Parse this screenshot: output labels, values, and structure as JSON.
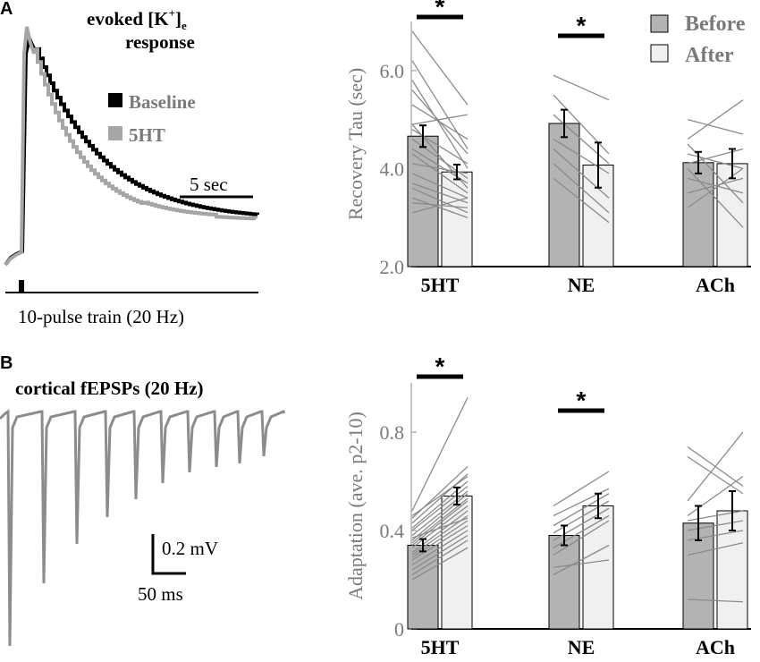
{
  "panels": {
    "a_label": "A",
    "b_label": "B"
  },
  "trace_a": {
    "title_line1": "evoked [K",
    "title_sup": "+",
    "title_close": "]",
    "title_sub": "e",
    "title_line2": "response",
    "legend": [
      {
        "label": "Baseline",
        "color": "#000000"
      },
      {
        "label": "5HT",
        "color": "#a6a6a6"
      }
    ],
    "scale_label": "5 sec",
    "stim_label": "10-pulse train (20 Hz)"
  },
  "trace_b": {
    "title": "cortical fEPSPs (20 Hz)",
    "scale_y_label": "0.2 mV",
    "scale_x_label": "50 ms",
    "color": "#8c8c8c"
  },
  "legend": [
    {
      "label": "Before",
      "color": "#b3b3b3"
    },
    {
      "label": "After",
      "color": "#f0f0f0"
    }
  ],
  "chart_data": [
    {
      "type": "bar",
      "title": "",
      "ylabel": "Recovery Tau (sec)",
      "xlabel": "",
      "ylim": [
        2.0,
        7.0
      ],
      "yticks": [
        "2.0",
        "4.0",
        "6.0"
      ],
      "ytick_values": [
        2,
        4,
        6
      ],
      "categories": [
        "5HT",
        "NE",
        "ACh"
      ],
      "series": [
        {
          "name": "Before",
          "color": "#b3b3b3",
          "values": [
            4.66,
            4.92,
            4.12
          ],
          "errors": [
            0.22,
            0.28,
            0.22
          ]
        },
        {
          "name": "After",
          "color": "#f0f0f0",
          "values": [
            3.93,
            4.07,
            4.1
          ],
          "errors": [
            0.15,
            0.46,
            0.3
          ]
        }
      ],
      "significance": [
        {
          "category": "5HT",
          "label": "*"
        },
        {
          "category": "NE",
          "label": "*"
        }
      ],
      "paired_lines": [
        [
          [
            6.8,
            5.3
          ],
          [
            6.2,
            4.4
          ],
          [
            5.8,
            4.0
          ],
          [
            5.6,
            4.3
          ],
          [
            5.3,
            4.6
          ],
          [
            4.9,
            5.1
          ],
          [
            4.8,
            4.1
          ],
          [
            4.6,
            3.8
          ],
          [
            4.4,
            3.7
          ],
          [
            4.3,
            3.5
          ],
          [
            4.1,
            3.9
          ],
          [
            3.9,
            3.4
          ],
          [
            3.7,
            3.3
          ],
          [
            3.6,
            3.1
          ],
          [
            3.4,
            3.0
          ],
          [
            3.3,
            3.2
          ],
          [
            3.1,
            3.4
          ],
          [
            4.9,
            3.6
          ]
        ],
        [
          [
            5.9,
            5.4
          ],
          [
            5.5,
            4.3
          ],
          [
            5.1,
            4.1
          ],
          [
            4.6,
            3.9
          ],
          [
            4.4,
            3.4
          ],
          [
            4.1,
            3.1
          ],
          [
            3.8,
            2.9
          ]
        ],
        [
          [
            5.0,
            4.7
          ],
          [
            4.6,
            5.4
          ],
          [
            4.3,
            4.0
          ],
          [
            4.1,
            4.4
          ],
          [
            3.8,
            3.5
          ],
          [
            3.5,
            3.8
          ],
          [
            3.2,
            4.0
          ],
          [
            4.0,
            2.8
          ],
          [
            4.5,
            3.3
          ]
        ]
      ]
    },
    {
      "type": "bar",
      "title": "",
      "ylabel": "Adaptation (ave. p2-10)",
      "xlabel": "",
      "ylim": [
        0,
        1.0
      ],
      "yticks": [
        "0",
        "0.4",
        "0.8"
      ],
      "ytick_values": [
        0,
        0.4,
        0.8
      ],
      "categories": [
        "5HT",
        "NE",
        "ACh"
      ],
      "series": [
        {
          "name": "Before",
          "color": "#b3b3b3",
          "values": [
            0.34,
            0.38,
            0.43
          ],
          "errors": [
            0.025,
            0.04,
            0.07
          ]
        },
        {
          "name": "After",
          "color": "#f0f0f0",
          "values": [
            0.54,
            0.5,
            0.48
          ],
          "errors": [
            0.035,
            0.05,
            0.08
          ]
        }
      ],
      "significance": [
        {
          "category": "5HT",
          "label": "*"
        },
        {
          "category": "NE",
          "label": "*"
        }
      ],
      "paired_lines": [
        [
          [
            0.48,
            0.94
          ],
          [
            0.45,
            0.66
          ],
          [
            0.43,
            0.63
          ],
          [
            0.41,
            0.6
          ],
          [
            0.4,
            0.58
          ],
          [
            0.38,
            0.56
          ],
          [
            0.36,
            0.55
          ],
          [
            0.35,
            0.53
          ],
          [
            0.34,
            0.52
          ],
          [
            0.33,
            0.5
          ],
          [
            0.31,
            0.48
          ],
          [
            0.3,
            0.46
          ],
          [
            0.29,
            0.44
          ],
          [
            0.28,
            0.42
          ],
          [
            0.26,
            0.4
          ],
          [
            0.24,
            0.38
          ],
          [
            0.22,
            0.36
          ],
          [
            0.2,
            0.33
          ],
          [
            0.46,
            0.62
          ],
          [
            0.37,
            0.45
          ]
        ],
        [
          [
            0.5,
            0.64
          ],
          [
            0.46,
            0.57
          ],
          [
            0.42,
            0.55
          ],
          [
            0.39,
            0.52
          ],
          [
            0.36,
            0.49
          ],
          [
            0.33,
            0.46
          ],
          [
            0.3,
            0.44
          ],
          [
            0.22,
            0.34
          ],
          [
            0.25,
            0.28
          ]
        ],
        [
          [
            0.74,
            0.58
          ],
          [
            0.7,
            0.55
          ],
          [
            0.52,
            0.8
          ],
          [
            0.46,
            0.62
          ],
          [
            0.44,
            0.48
          ],
          [
            0.4,
            0.44
          ],
          [
            0.36,
            0.4
          ],
          [
            0.12,
            0.11
          ],
          [
            0.3,
            0.35
          ]
        ]
      ]
    }
  ]
}
